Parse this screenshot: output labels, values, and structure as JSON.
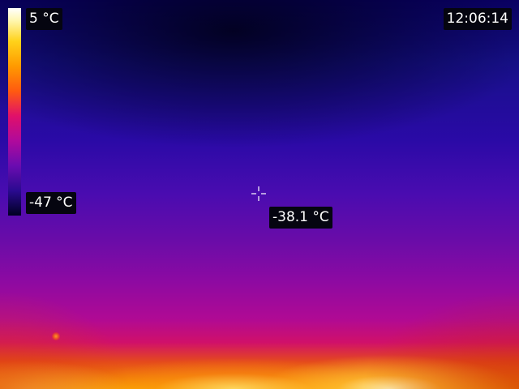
{
  "scale": {
    "max_label": "5 °C",
    "min_label": "-47 °C"
  },
  "clock": {
    "time": "12:06:14"
  },
  "spot_meter": {
    "temperature": "-38.1 °C",
    "icon": "crosshair-icon"
  },
  "palette": {
    "name_icon": "ironbow-color-scale",
    "cold": "#0a0066",
    "mid": "#b00a94",
    "hot": "#f8a000",
    "hottest": "#ffffff"
  }
}
